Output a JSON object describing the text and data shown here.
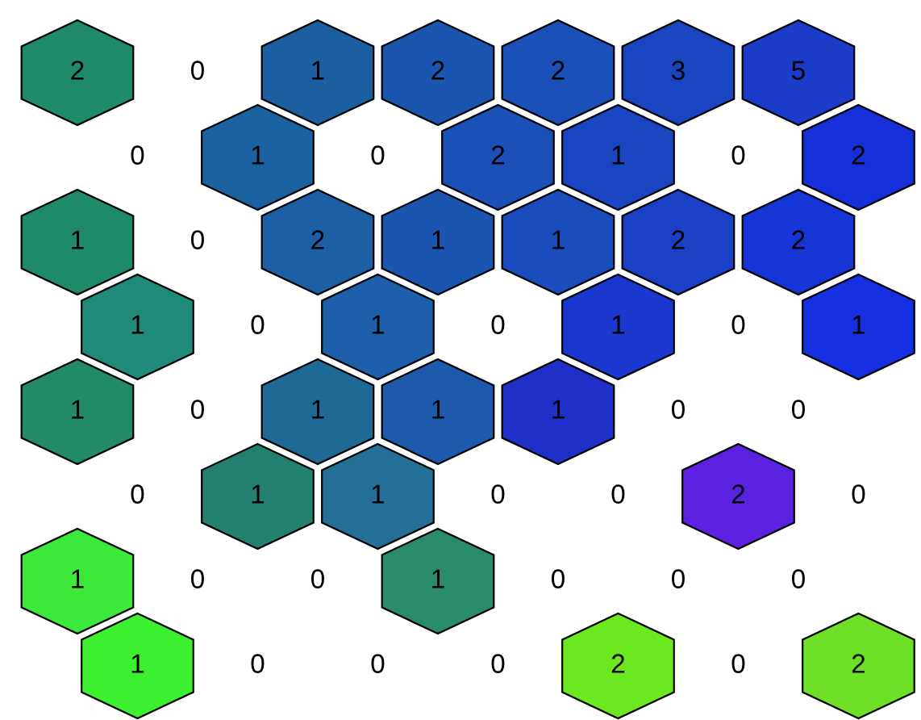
{
  "chart_data": {
    "type": "other",
    "values": [
      2,
      0,
      1,
      2,
      2,
      3,
      5,
      0,
      1,
      0,
      2,
      1,
      0,
      2,
      1,
      0,
      2,
      1,
      1,
      2,
      2,
      1,
      0,
      1,
      0,
      1,
      0,
      1,
      1,
      0,
      1,
      1,
      1,
      0,
      0,
      0,
      1,
      1,
      0,
      0,
      2,
      0,
      1,
      0,
      0,
      1,
      0,
      0,
      0,
      1,
      0,
      0,
      0,
      2,
      0,
      2
    ],
    "colors": [
      "#1f8a6a",
      null,
      "#1b5fa0",
      "#1a55b0",
      "#1a50b8",
      "#1a45c0",
      "#1a3cc8",
      null,
      "#1b62a0",
      null,
      "#1a50b8",
      "#1a45c0",
      null,
      "#1530d8",
      "#1f8a6a",
      null,
      "#1d5fa5",
      "#1a55b0",
      "#1a4cbb",
      "#1a40c5",
      "#1535d5",
      "#208a78",
      null,
      "#1d5fab",
      null,
      "#1a38d0",
      null,
      "#1530e0",
      "#228a68",
      null,
      "#1f6a95",
      "#1d5aab",
      "#1f30c8",
      null,
      null,
      null,
      "#23806f",
      "#236f98",
      null,
      null,
      "#5a22e0",
      null,
      "#3ee83a",
      null,
      null,
      "#2a8a6c",
      null,
      null,
      null,
      "#3cf030",
      null,
      null,
      null,
      "#6ce820",
      null,
      "#6ee028"
    ],
    "data_labels": true
  }
}
